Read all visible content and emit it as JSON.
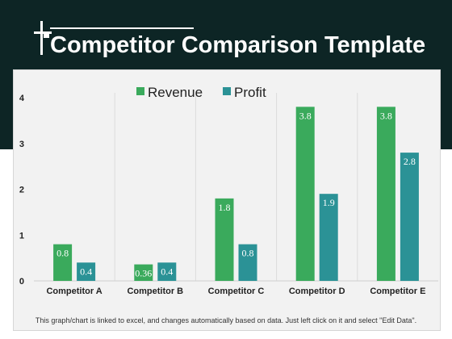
{
  "slide": {
    "title": "Competitor Comparison Template",
    "footnote": "This graph/chart is linked to excel, and changes automatically based on data. Just left click on it and select \"Edit Data\"."
  },
  "colors": {
    "header_bg": "#0d2525",
    "revenue": "#3aaa5c",
    "profit": "#2b9296"
  },
  "chart_data": {
    "type": "bar",
    "categories": [
      "Competitor A",
      "Competitor B",
      "Competitor C",
      "Competitor D",
      "Competitor E"
    ],
    "series": [
      {
        "name": "Revenue",
        "values": [
          0.8,
          0.36,
          1.8,
          3.8,
          3.8
        ],
        "labels": [
          "0.8",
          "0.36",
          "1.8",
          "3.8",
          "3.8"
        ],
        "color": "#3aaa5c"
      },
      {
        "name": "Profit",
        "values": [
          0.4,
          0.4,
          0.8,
          1.9,
          2.8
        ],
        "labels": [
          "0.4",
          "0.4",
          "0.8",
          "1.9",
          "2.8"
        ],
        "color": "#2b9296"
      }
    ],
    "ylim": [
      0,
      4
    ],
    "yticks": [
      "0",
      "1",
      "2",
      "3",
      "4"
    ],
    "legend": "top-center",
    "grid": "vertical category separators"
  }
}
